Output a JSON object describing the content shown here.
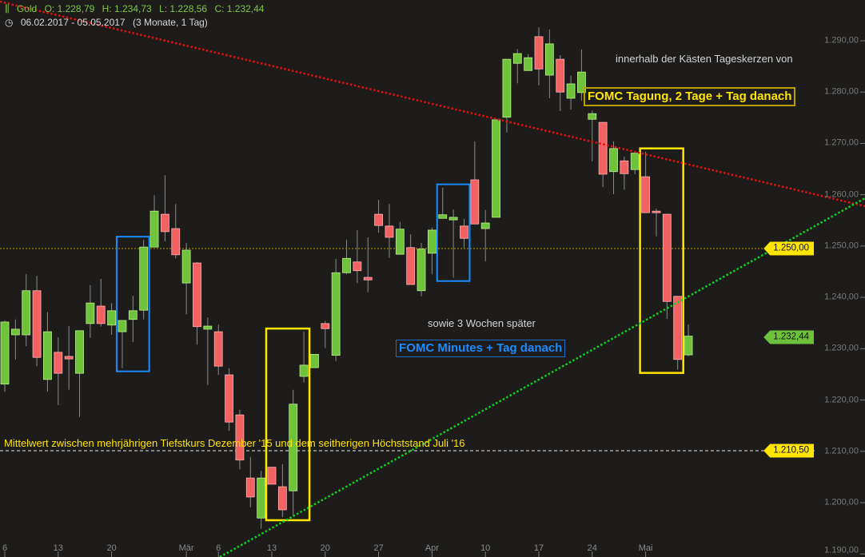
{
  "header": {
    "instrument": "Gold",
    "open": "O: 1.228,79",
    "high": "H: 1.234,73",
    "low": "L: 1.228,56",
    "close": "C: 1.232,44",
    "range": "06.02.2017 - 05.05.2017",
    "period": "(3 Monate, 1 Tag)",
    "instrument_icon": "candlestick-icon",
    "range_icon": "clock-icon"
  },
  "annotations": {
    "note_top": "innerhalb der Kästen Tageskerzen von",
    "fomc_meeting": "FOMC Tagung, 2 Tage + Tag danach",
    "note_mid": "sowie 3 Wochen später",
    "fomc_minutes": "FOMC Minutes + Tag danach",
    "mean_line": "Mittelwert zwischen mehrjährigen Tiefstkurs Dezember '15 und dem seitherigen Höchststand Juli '16"
  },
  "price_tags": [
    {
      "label": "1.250,00",
      "value": 1250.0,
      "color": "#ffe500"
    },
    {
      "label": "1.232,44",
      "value": 1232.44,
      "color": "#6cc23a"
    },
    {
      "label": "1.210,50",
      "value": 1210.5,
      "color": "#ffe500"
    }
  ],
  "colors": {
    "up": "#6fc33a",
    "up_border": "#b8f08a",
    "down": "#f26262",
    "down_border": "#ffb0b0",
    "background": "#1d1c1b",
    "fomc_meeting": "#ffe500",
    "fomc_minutes": "#1a8cff",
    "resistance": "#e01010",
    "support": "#10d020"
  },
  "chart_data": {
    "type": "candlestick",
    "ylim": [
      1190,
      1295
    ],
    "y_ticks": [
      "1.290,00",
      "1.280,00",
      "1.270,00",
      "1.260,00",
      "1.250,00",
      "1.240,00",
      "1.230,00",
      "1.220,00",
      "1.210,00",
      "1.200,00",
      "1.190,00"
    ],
    "y_tick_values": [
      1290,
      1280,
      1270,
      1260,
      1250,
      1240,
      1230,
      1220,
      1210,
      1200,
      1190
    ],
    "x_ticks": [
      {
        "label": "6",
        "index": 0
      },
      {
        "label": "13",
        "index": 5
      },
      {
        "label": "20",
        "index": 10
      },
      {
        "label": "Mär",
        "index": 17
      },
      {
        "label": "6",
        "index": 20
      },
      {
        "label": "13",
        "index": 25
      },
      {
        "label": "20",
        "index": 30
      },
      {
        "label": "27",
        "index": 35
      },
      {
        "label": "Apr",
        "index": 40
      },
      {
        "label": "10",
        "index": 45
      },
      {
        "label": "17",
        "index": 50
      },
      {
        "label": "24",
        "index": 55
      },
      {
        "label": "Mai",
        "index": 60
      }
    ],
    "ohlc": [
      [
        1223.1,
        1235.5,
        1221.6,
        1235.2
      ],
      [
        1232.7,
        1235.7,
        1227.9,
        1233.8
      ],
      [
        1232.7,
        1244.5,
        1230.5,
        1241.3
      ],
      [
        1241.3,
        1244.2,
        1226.6,
        1228.3
      ],
      [
        1224.0,
        1237.1,
        1221.6,
        1233.3
      ],
      [
        1229.3,
        1232.2,
        1219.0,
        1225.2
      ],
      [
        1228.5,
        1234.4,
        1222.0,
        1228.0
      ],
      [
        1225.2,
        1233.5,
        1216.7,
        1233.5
      ],
      [
        1234.9,
        1242.4,
        1232.1,
        1238.9
      ],
      [
        1238.3,
        1243.6,
        1234.3,
        1234.9
      ],
      [
        1234.6,
        1238.9,
        1232.7,
        1237.4
      ],
      [
        1233.3,
        1235.5,
        1226.2,
        1235.5
      ],
      [
        1235.7,
        1240.3,
        1231.3,
        1237.4
      ],
      [
        1237.5,
        1251.2,
        1235.7,
        1249.8
      ],
      [
        1249.8,
        1259.9,
        1249.8,
        1256.8
      ],
      [
        1256.2,
        1263.8,
        1250.9,
        1252.8
      ],
      [
        1253.4,
        1258.2,
        1247.6,
        1248.3
      ],
      [
        1242.8,
        1250.6,
        1236.7,
        1249.2
      ],
      [
        1246.7,
        1246.9,
        1230.8,
        1234.3
      ],
      [
        1233.8,
        1236.1,
        1222.9,
        1234.4
      ],
      [
        1233.3,
        1234.7,
        1224.9,
        1226.6
      ],
      [
        1224.9,
        1226.2,
        1214.0,
        1215.7
      ],
      [
        1217.1,
        1218.1,
        1206.5,
        1208.3
      ],
      [
        1204.8,
        1208.9,
        1199.1,
        1201.1
      ],
      [
        1197.0,
        1206.2,
        1194.9,
        1204.8
      ],
      [
        1206.9,
        1206.9,
        1203.6,
        1203.6
      ],
      [
        1203.1,
        1207.5,
        1197.2,
        1198.6
      ],
      [
        1202.3,
        1222.0,
        1197.5,
        1219.2
      ],
      [
        1224.6,
        1233.3,
        1223.4,
        1226.8
      ],
      [
        1226.3,
        1228.9,
        1226.3,
        1228.9
      ],
      [
        1234.9,
        1235.4,
        1230.1,
        1233.9
      ],
      [
        1228.7,
        1247.5,
        1227.6,
        1244.8
      ],
      [
        1244.8,
        1251.2,
        1244.5,
        1247.6
      ],
      [
        1246.9,
        1253.1,
        1242.8,
        1245.2
      ],
      [
        1243.9,
        1251.7,
        1241.0,
        1243.4
      ],
      [
        1256.2,
        1259.0,
        1252.6,
        1254.0
      ],
      [
        1253.9,
        1258.2,
        1247.7,
        1251.7
      ],
      [
        1248.4,
        1254.7,
        1248.4,
        1253.3
      ],
      [
        1249.7,
        1252.3,
        1242.5,
        1242.5
      ],
      [
        1241.3,
        1250.6,
        1240.2,
        1249.4
      ],
      [
        1248.6,
        1253.6,
        1244.5,
        1253.1
      ],
      [
        1255.4,
        1261.4,
        1255.4,
        1256.1
      ],
      [
        1255.1,
        1257.1,
        1243.8,
        1255.6
      ],
      [
        1253.9,
        1255.3,
        1249.7,
        1251.5
      ],
      [
        1262.9,
        1270.4,
        1254.3,
        1254.3
      ],
      [
        1253.4,
        1257.0,
        1247.0,
        1254.5
      ],
      [
        1255.6,
        1274.6,
        1255.6,
        1274.6
      ],
      [
        1275.1,
        1286.4,
        1272.1,
        1286.4
      ],
      [
        1285.6,
        1288.4,
        1281.7,
        1287.5
      ],
      [
        1284.2,
        1287.4,
        1284.2,
        1286.7
      ],
      [
        1290.8,
        1292.6,
        1281.3,
        1284.5
      ],
      [
        1283.3,
        1292.2,
        1278.8,
        1289.4
      ],
      [
        1286.4,
        1287.2,
        1276.3,
        1280.0
      ],
      [
        1278.8,
        1283.2,
        1276.6,
        1281.6
      ],
      [
        1279.9,
        1288.3,
        1278.3,
        1283.9
      ],
      [
        1274.7,
        1276.4,
        1266.5,
        1275.8
      ],
      [
        1274.1,
        1274.1,
        1261.5,
        1264.0
      ],
      [
        1264.5,
        1270.4,
        1260.1,
        1269.0
      ],
      [
        1266.6,
        1267.4,
        1261.0,
        1264.1
      ],
      [
        1264.9,
        1268.1,
        1264.0,
        1268.1
      ],
      [
        1263.5,
        1268.4,
        1256.5,
        1256.5
      ],
      [
        1256.8,
        1257.3,
        1251.9,
        1256.7
      ],
      [
        1256.2,
        1256.2,
        1235.8,
        1239.2
      ],
      [
        1240.2,
        1240.2,
        1225.9,
        1227.9
      ],
      [
        1228.79,
        1234.73,
        1228.56,
        1232.44
      ]
    ],
    "horizontal_lines": [
      {
        "value": 1250.0,
        "style": "dotted"
      },
      {
        "value": 1210.5,
        "style": "dashed"
      }
    ],
    "highlight_boxes": [
      {
        "kind": "fomc_minutes",
        "from_index": 11,
        "to_index": 13
      },
      {
        "kind": "fomc_meeting",
        "from_index": 25,
        "to_index": 28
      },
      {
        "kind": "fomc_minutes",
        "from_index": 41,
        "to_index": 43
      },
      {
        "kind": "fomc_meeting",
        "from_index": 60,
        "to_index": 63
      }
    ]
  }
}
